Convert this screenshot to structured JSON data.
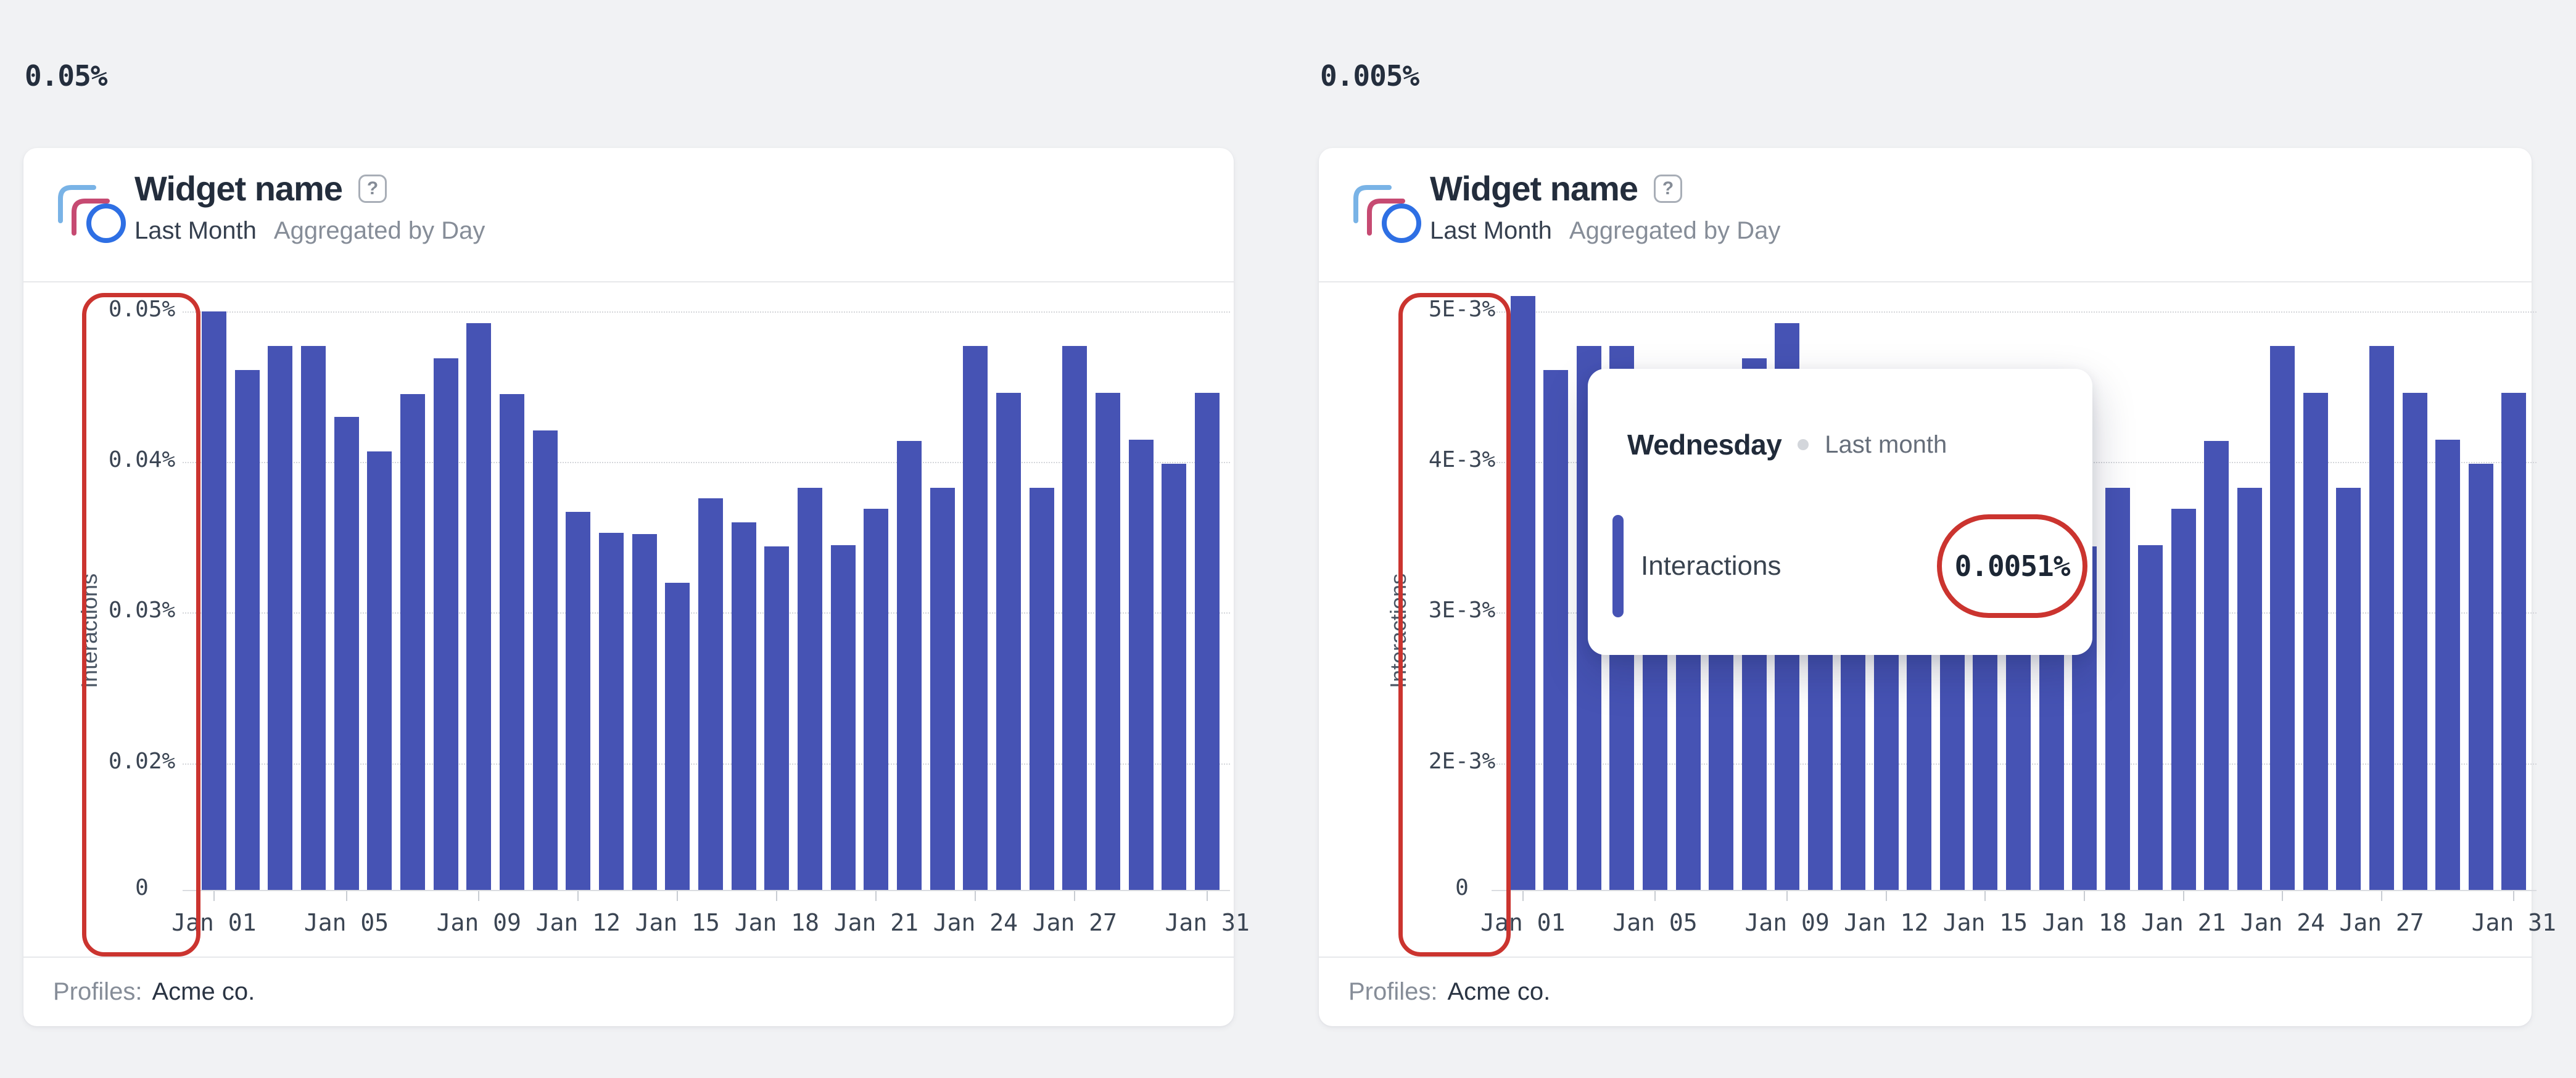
{
  "page": {
    "background": "#f1f2f4"
  },
  "annotation_color": "#cb342f",
  "widgets": [
    {
      "scale_label": "0.05%",
      "header": {
        "title": "Widget name",
        "help": "?",
        "period": "Last Month",
        "aggregation": "Aggregated by Day"
      },
      "footer": {
        "label": "Profiles:",
        "value": "Acme co."
      },
      "chart_data": {
        "type": "bar",
        "title": "Widget name — Interactions, Last Month",
        "xlabel": "",
        "ylabel": "Interactions",
        "unit": "%",
        "grid": "dotted-horizontal",
        "bar_color": "#4653b4",
        "value_step": 0.01,
        "ylim_note": "axis labeled 0.05%..0.02% then 0 at baseline",
        "y_ticks": [
          {
            "label": "0.05%",
            "value": 0.05
          },
          {
            "label": "0.04%",
            "value": 0.04
          },
          {
            "label": "0.03%",
            "value": 0.03
          },
          {
            "label": "0.02%",
            "value": 0.02
          },
          {
            "label": "0",
            "value": 0
          }
        ],
        "x_ticks": [
          {
            "label": "Jan 01",
            "day": 1
          },
          {
            "label": "Jan 05",
            "day": 5
          },
          {
            "label": "Jan 09",
            "day": 9
          },
          {
            "label": "Jan 12",
            "day": 12
          },
          {
            "label": "Jan 15",
            "day": 15
          },
          {
            "label": "Jan 18",
            "day": 18
          },
          {
            "label": "Jan 21",
            "day": 21
          },
          {
            "label": "Jan 24",
            "day": 24
          },
          {
            "label": "Jan 27",
            "day": 27
          },
          {
            "label": "Jan 31",
            "day": 31
          }
        ],
        "values": [
          0.05,
          0.0461,
          0.0477,
          0.0477,
          0.043,
          0.0407,
          0.0445,
          0.0469,
          0.0492,
          0.0445,
          0.0421,
          0.0367,
          0.0353,
          0.0352,
          0.032,
          0.0376,
          0.036,
          0.0344,
          0.0383,
          0.0345,
          0.0369,
          0.0414,
          0.0383,
          0.0477,
          0.0446,
          0.0383,
          0.0477,
          0.0446,
          0.0415,
          0.0399,
          0.0446
        ]
      }
    },
    {
      "scale_label": "0.005%",
      "header": {
        "title": "Widget name",
        "help": "?",
        "period": "Last Month",
        "aggregation": "Aggregated by Day"
      },
      "footer": {
        "label": "Profiles:",
        "value": "Acme co."
      },
      "tooltip": {
        "title": "Wednesday",
        "context": "Last month",
        "series": "Interactions",
        "value": "0.0051%"
      },
      "chart_data": {
        "type": "bar",
        "title": "Widget name — Interactions, Last Month (scientific notation axis)",
        "xlabel": "",
        "ylabel": "Interactions",
        "unit": "%",
        "grid": "dotted-horizontal",
        "bar_color": "#4653b4",
        "value_step": 0.001,
        "ylim_note": "axis labeled 5E-3%..2E-3% then 0 at baseline",
        "y_ticks": [
          {
            "label": "5E-3%",
            "value": 0.005
          },
          {
            "label": "4E-3%",
            "value": 0.004
          },
          {
            "label": "3E-3%",
            "value": 0.003
          },
          {
            "label": "2E-3%",
            "value": 0.002
          },
          {
            "label": "0",
            "value": 0
          }
        ],
        "x_ticks": [
          {
            "label": "Jan 01",
            "day": 1
          },
          {
            "label": "Jan 05",
            "day": 5
          },
          {
            "label": "Jan 09",
            "day": 9
          },
          {
            "label": "Jan 12",
            "day": 12
          },
          {
            "label": "Jan 15",
            "day": 15
          },
          {
            "label": "Jan 18",
            "day": 18
          },
          {
            "label": "Jan 21",
            "day": 21
          },
          {
            "label": "Jan 24",
            "day": 24
          },
          {
            "label": "Jan 27",
            "day": 27
          },
          {
            "label": "Jan 31",
            "day": 31
          }
        ],
        "values": [
          0.0051,
          0.00461,
          0.00477,
          0.00477,
          0.0043,
          0.00407,
          0.00445,
          0.00469,
          0.00492,
          0.00445,
          0.00421,
          0.00367,
          0.00353,
          0.00352,
          0.0032,
          0.00376,
          0.0036,
          0.00344,
          0.00383,
          0.00345,
          0.00369,
          0.00414,
          0.00383,
          0.00477,
          0.00446,
          0.00383,
          0.00477,
          0.00446,
          0.00415,
          0.00399,
          0.00446
        ]
      }
    }
  ]
}
